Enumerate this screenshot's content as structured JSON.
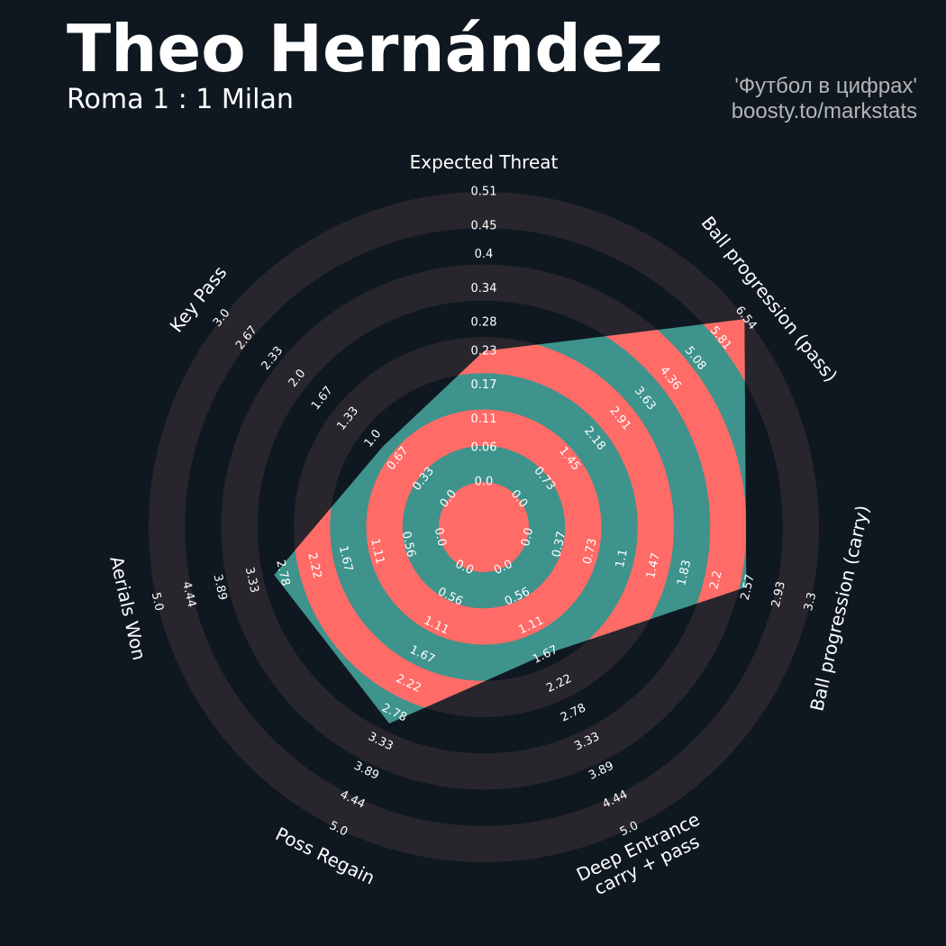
{
  "chart_data": {
    "type": "radar",
    "title": "Theo Hernández",
    "subtitle": "Roma 1 : 1 Milan",
    "credits": [
      "'Футбол в цифрах'",
      "boosty.to/markstats"
    ],
    "categories": [
      "Expected Threat",
      "Ball progression (pass)",
      "Ball progression (carry)",
      "Deep Entrance\ncarry + pass",
      "Poss Regain",
      "Aerials Won",
      "Key Pass"
    ],
    "values": [
      0.23,
      6.5,
      2.55,
      1.66,
      2.98,
      2.93,
      0.87
    ],
    "ranges": [
      [
        0,
        0.51
      ],
      [
        0,
        6.54
      ],
      [
        0,
        3.3
      ],
      [
        0,
        5
      ],
      [
        0,
        5
      ],
      [
        0,
        5
      ],
      [
        0,
        3
      ]
    ],
    "ticks": [
      [
        {
          "value": 0,
          "label": "0.0"
        },
        0.06,
        0.11,
        0.17,
        0.23,
        0.28,
        0.34,
        0.4,
        0.45,
        0.51
      ],
      [
        {
          "value": 0,
          "label": "0.0"
        },
        0.73,
        1.45,
        2.18,
        2.91,
        3.63,
        4.36,
        5.08,
        5.81,
        6.54
      ],
      [
        {
          "value": 0,
          "label": "0.0"
        },
        0.37,
        0.73,
        1.1,
        1.47,
        1.83,
        2.2,
        2.57,
        2.93,
        3.3
      ],
      [
        {
          "value": 0,
          "label": "0.0"
        },
        0.56,
        1.11,
        1.67,
        2.22,
        2.78,
        3.33,
        3.89,
        4.44,
        {
          "value": 5,
          "label": "5.0"
        }
      ],
      [
        {
          "value": 0,
          "label": "0.0"
        },
        0.56,
        1.11,
        1.67,
        2.22,
        2.78,
        3.33,
        3.89,
        4.44,
        {
          "value": 5,
          "label": "5.0"
        }
      ],
      [
        {
          "value": 0,
          "label": "0.0"
        },
        0.56,
        1.11,
        1.67,
        2.22,
        2.78,
        3.33,
        3.89,
        4.44,
        {
          "value": 5,
          "label": "5.0"
        }
      ],
      [
        {
          "value": 0,
          "label": "0.0"
        },
        0.33,
        0.67,
        {
          "value": 1,
          "label": "1.0"
        },
        1.33,
        1.67,
        {
          "value": 2,
          "label": "2.0"
        },
        2.33,
        2.67,
        {
          "value": 3,
          "label": "3.0"
        }
      ]
    ],
    "color": "#3e938c",
    "ring_inner_color": "#ff6b67",
    "ring_outer_color": "#28252c"
  }
}
